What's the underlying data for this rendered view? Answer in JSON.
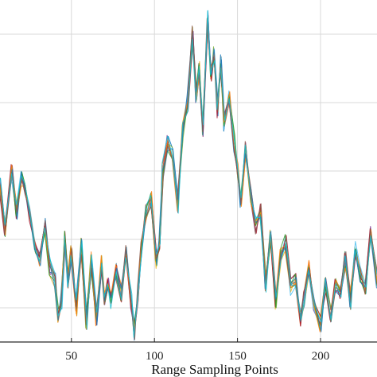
{
  "chart_data": {
    "type": "line",
    "title": "",
    "xlabel": "Range Sampling Points",
    "ylabel": "",
    "xlim": [
      7,
      234
    ],
    "ylim": [
      0,
      1
    ],
    "x_ticks": [
      50,
      100,
      150,
      200
    ],
    "x_tick_labels": [
      "50",
      "100",
      "150",
      "200"
    ],
    "y_ticks": [
      0.1,
      0.3,
      0.5,
      0.7,
      0.9
    ],
    "grid": true,
    "legend": "none",
    "series_count": 12,
    "series_colors": [
      "#0072bd",
      "#d95319",
      "#edb120",
      "#7e2f8e",
      "#77ac30",
      "#4dbeee",
      "#a2142f",
      "#2ca02c",
      "#ff7f0e",
      "#1f77b4",
      "#8c564b",
      "#17becf"
    ],
    "x": [
      7,
      10,
      14,
      17,
      20,
      22,
      25,
      28,
      31,
      34,
      37,
      40,
      42,
      44,
      46,
      48,
      50,
      53,
      56,
      59,
      62,
      65,
      68,
      70,
      72,
      74,
      77,
      80,
      83,
      86,
      88,
      90,
      92,
      95,
      98,
      101,
      103,
      105,
      108,
      111,
      114,
      117,
      120,
      123,
      125,
      127,
      129,
      132,
      134,
      136,
      138,
      140,
      142,
      145,
      148,
      150,
      152,
      155,
      158,
      161,
      164,
      167,
      170,
      173,
      176,
      179,
      182,
      185,
      188,
      190,
      193,
      196,
      200,
      203,
      206,
      209,
      212,
      215,
      218,
      221,
      224,
      227,
      230,
      234
    ],
    "y": [
      0.46,
      0.33,
      0.5,
      0.38,
      0.48,
      0.45,
      0.37,
      0.27,
      0.24,
      0.34,
      0.22,
      0.18,
      0.08,
      0.12,
      0.3,
      0.18,
      0.26,
      0.1,
      0.28,
      0.06,
      0.24,
      0.07,
      0.23,
      0.13,
      0.17,
      0.12,
      0.21,
      0.14,
      0.27,
      0.12,
      0.03,
      0.14,
      0.27,
      0.38,
      0.42,
      0.24,
      0.29,
      0.5,
      0.58,
      0.55,
      0.4,
      0.62,
      0.7,
      0.9,
      0.72,
      0.8,
      0.62,
      0.95,
      0.78,
      0.84,
      0.68,
      0.82,
      0.64,
      0.72,
      0.58,
      0.5,
      0.41,
      0.57,
      0.43,
      0.34,
      0.38,
      0.17,
      0.32,
      0.12,
      0.25,
      0.29,
      0.16,
      0.18,
      0.07,
      0.13,
      0.22,
      0.11,
      0.05,
      0.17,
      0.08,
      0.17,
      0.15,
      0.24,
      0.12,
      0.27,
      0.2,
      0.16,
      0.32,
      0.18
    ]
  }
}
